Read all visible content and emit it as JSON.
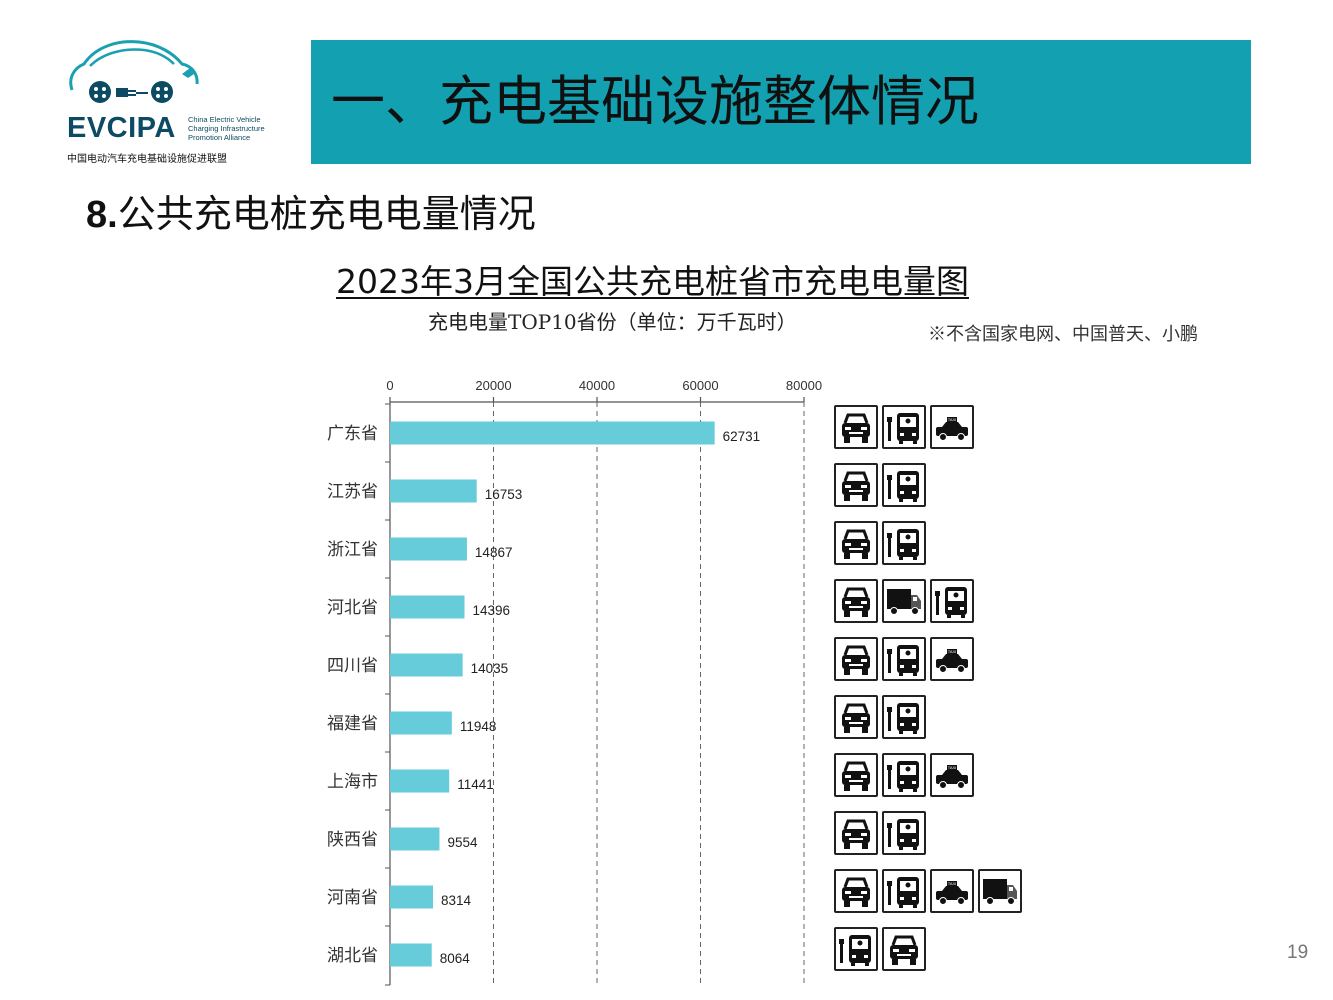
{
  "logo": {
    "name": "EVCIPA",
    "en_lines": [
      "China Electric Vehicle",
      "Charging Infrastructure",
      "Promotion Alliance"
    ],
    "cn": "中国电动汽车充电基础设施促进联盟"
  },
  "header": {
    "title": "一、充电基础设施整体情况"
  },
  "section": {
    "number": "8.",
    "title": "公共充电桩充电电量情况"
  },
  "page_number": "19",
  "colors": {
    "banner": "#13a1b2",
    "bar": "#66ccd9"
  },
  "chart_data": {
    "type": "bar",
    "orientation": "horizontal",
    "title": "2023年3月全国公共充电桩省市充电电量图",
    "subtitle": "充电电量TOP10省份（单位：万千瓦时）",
    "note": "※不含国家电网、中国普天、小鹏",
    "categories": [
      "广东省",
      "江苏省",
      "浙江省",
      "河北省",
      "四川省",
      "福建省",
      "上海市",
      "陕西省",
      "河南省",
      "湖北省"
    ],
    "values": [
      62731,
      16753,
      14867,
      14396,
      14035,
      11948,
      11441,
      9554,
      8314,
      8064
    ],
    "xlim": [
      0,
      80000
    ],
    "x_ticks": [
      "0",
      "20000",
      "40000",
      "60000",
      "80000"
    ],
    "grid": "vertical dashed",
    "vehicle_icons": [
      [
        "car-icon",
        "bus-icon",
        "taxi-icon"
      ],
      [
        "car-icon",
        "bus-icon"
      ],
      [
        "car-icon",
        "bus-icon"
      ],
      [
        "car-icon",
        "truck-icon",
        "bus-icon"
      ],
      [
        "car-icon",
        "bus-icon",
        "taxi-icon"
      ],
      [
        "car-icon",
        "bus-icon"
      ],
      [
        "car-icon",
        "bus-icon",
        "taxi-icon"
      ],
      [
        "car-icon",
        "bus-icon"
      ],
      [
        "car-icon",
        "bus-icon",
        "taxi-icon",
        "truck-icon"
      ],
      [
        "bus-icon",
        "car-icon"
      ]
    ]
  }
}
